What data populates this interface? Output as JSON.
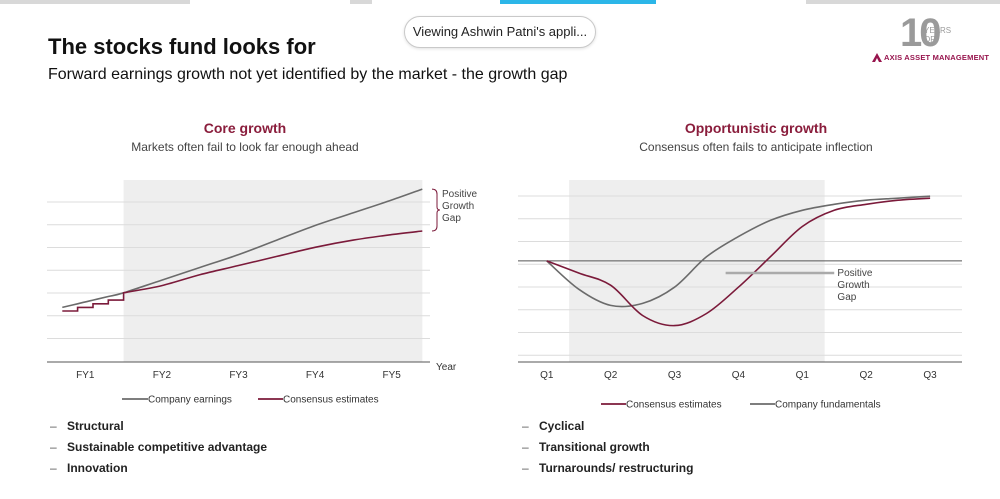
{
  "banner": {
    "text": "Viewing Ashwin Patni's appli..."
  },
  "logo": {
    "numeral": "10",
    "years_line1": "YEARS",
    "years_line2": "OF",
    "brand": "AXIS ASSET MANAGEMENT",
    "brand_color": "#97144d"
  },
  "slide": {
    "title": "The stocks fund looks for",
    "subtitle": "Forward earnings growth not yet identified by the market - the growth gap"
  },
  "colors": {
    "company": "#6b6b6b",
    "consensus": "#7b1a3a",
    "accent_title": "#8a1d3c",
    "shade": "#eeeeee"
  },
  "left_panel": {
    "title": "Core growth",
    "subtitle": "Markets often fail to look far enough ahead",
    "annotation": [
      "Positive",
      "Growth",
      "Gap"
    ],
    "bullets": [
      "Structural",
      "Sustainable competitive advantage",
      "Innovation"
    ]
  },
  "right_panel": {
    "title": "Opportunistic growth",
    "subtitle": "Consensus often fails to anticipate inflection",
    "annotation": [
      "Positive",
      "Growth",
      "Gap"
    ],
    "bullets": [
      "Cyclical",
      "Transitional growth",
      "Turnarounds/ restructuring"
    ]
  },
  "chart_data": [
    {
      "type": "line",
      "title": "Core growth",
      "subtitle": "Markets often fail to look far enough ahead",
      "xlabel": "Year",
      "ylabel": "",
      "categories": [
        "FY1",
        "FY2",
        "FY3",
        "FY4",
        "FY5"
      ],
      "x": [
        0.7,
        0.9,
        1.1,
        1.3,
        1.5,
        2.0,
        2.5,
        3.0,
        3.5,
        4.0,
        4.5,
        5.0,
        5.4
      ],
      "ylim": [
        0,
        10
      ],
      "grid": true,
      "legend": "bottom",
      "series": [
        {
          "name": "Company earnings",
          "values": [
            3.0,
            3.2,
            3.4,
            3.6,
            3.8,
            4.5,
            5.2,
            5.9,
            6.7,
            7.5,
            8.2,
            8.9,
            9.5
          ]
        },
        {
          "name": "Consensus estimates",
          "values": [
            2.8,
            3.0,
            3.2,
            3.4,
            3.8,
            4.2,
            4.8,
            5.3,
            5.8,
            6.3,
            6.7,
            7.0,
            7.2
          ]
        }
      ],
      "shaded_x_range": [
        1.5,
        5.4
      ],
      "annotation": "Positive Growth Gap"
    },
    {
      "type": "line",
      "title": "Opportunistic growth",
      "subtitle": "Consensus often fails to anticipate inflection",
      "xlabel": "",
      "ylabel": "",
      "categories": [
        "Q1",
        "Q2",
        "Q3",
        "Q4",
        "Q1",
        "Q2",
        "Q3"
      ],
      "x": [
        1.0,
        1.5,
        2.0,
        2.5,
        3.0,
        3.5,
        4.0,
        4.5,
        5.0,
        5.5,
        6.0,
        6.5,
        7.0
      ],
      "ylim": [
        -5,
        4
      ],
      "grid": true,
      "legend": "bottom",
      "series": [
        {
          "name": "Consensus estimates",
          "values": [
            0,
            -0.6,
            -1.2,
            -2.7,
            -3.2,
            -2.6,
            -1.3,
            0.2,
            1.7,
            2.5,
            2.8,
            3.0,
            3.1
          ]
        },
        {
          "name": "Company fundamentals",
          "values": [
            0,
            -1.4,
            -2.2,
            -2.1,
            -1.3,
            0.2,
            1.2,
            2.0,
            2.5,
            2.8,
            3.0,
            3.1,
            3.2
          ]
        }
      ],
      "shaded_x_range": [
        1.35,
        5.35
      ],
      "annotation": "Positive Growth Gap"
    }
  ]
}
